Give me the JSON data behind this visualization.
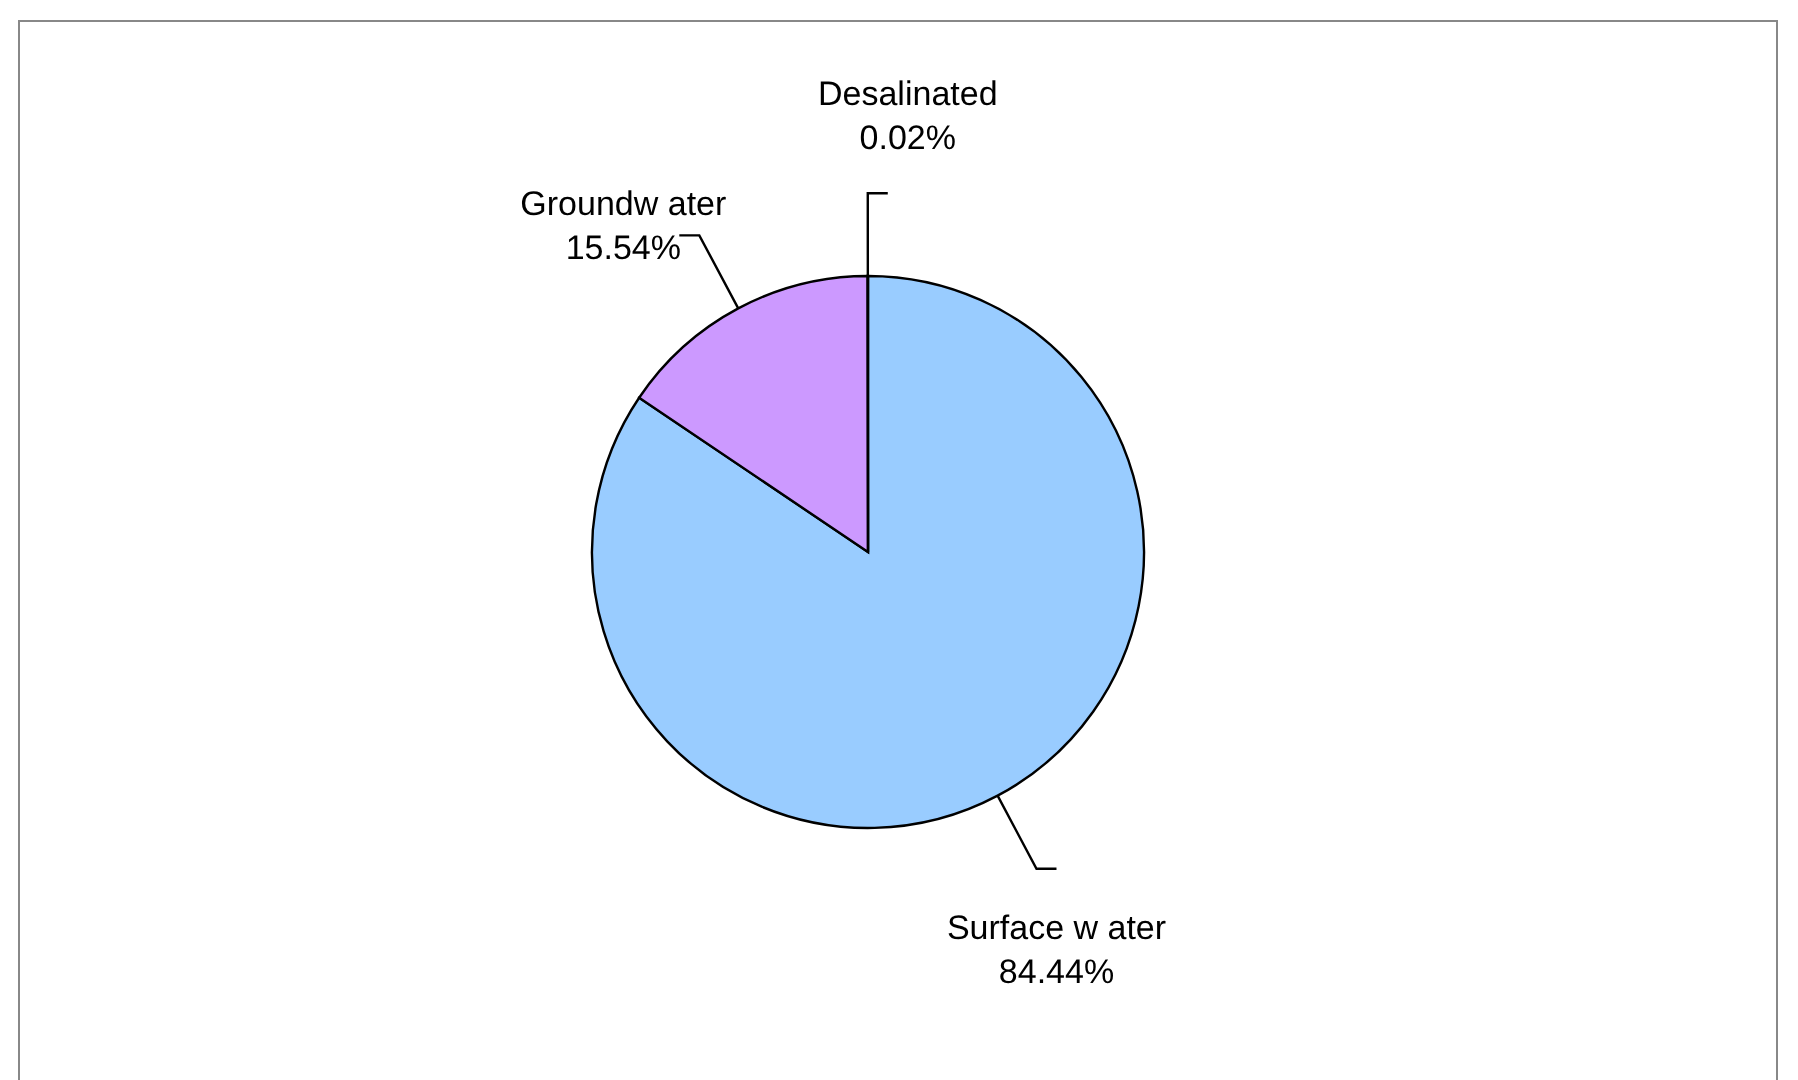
{
  "chart_data": {
    "type": "pie",
    "categories": [
      "Surface w ater",
      "Groundw ater",
      "Desalinated"
    ],
    "values": [
      84.44,
      15.54,
      0.02
    ],
    "colors": [
      "#99ccff",
      "#cc99ff",
      "#ffffcc"
    ],
    "value_labels": [
      "84.44%",
      "15.54%",
      "0.02%"
    ],
    "legend": false
  }
}
